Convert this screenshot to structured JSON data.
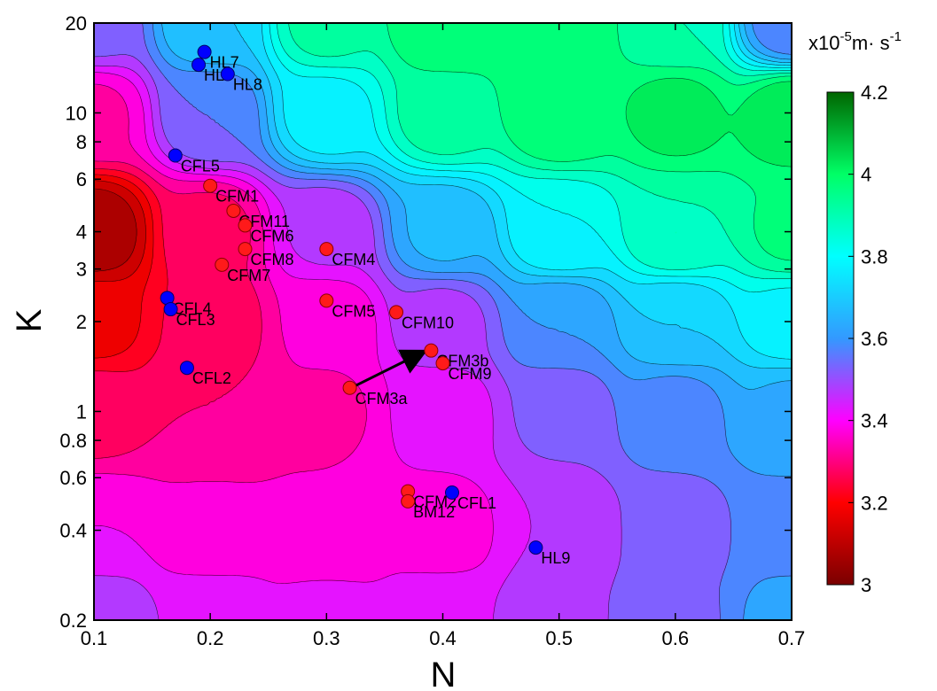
{
  "chart_data": {
    "type": "contour",
    "xlabel": "N",
    "ylabel": "K",
    "xlim": [
      0.1,
      0.7
    ],
    "ylim": [
      0.2,
      20
    ],
    "yscale": "log",
    "x_ticks": [
      {
        "v": 0.1,
        "label": "0.1"
      },
      {
        "v": 0.2,
        "label": "0.2"
      },
      {
        "v": 0.3,
        "label": "0.3"
      },
      {
        "v": 0.4,
        "label": "0.4"
      },
      {
        "v": 0.5,
        "label": "0.5"
      },
      {
        "v": 0.6,
        "label": "0.6"
      },
      {
        "v": 0.7,
        "label": "0.7"
      }
    ],
    "y_ticks": [
      {
        "v": 0.2,
        "label": "0.2"
      },
      {
        "v": 0.4,
        "label": "0.4"
      },
      {
        "v": 0.6,
        "label": "0.6"
      },
      {
        "v": 0.8,
        "label": "0.8"
      },
      {
        "v": 1,
        "label": "1"
      },
      {
        "v": 2,
        "label": "2"
      },
      {
        "v": 3,
        "label": "3"
      },
      {
        "v": 4,
        "label": "4"
      },
      {
        "v": 6,
        "label": "6"
      },
      {
        "v": 8,
        "label": "8"
      },
      {
        "v": 10,
        "label": "10"
      },
      {
        "v": 20,
        "label": "20"
      }
    ],
    "colorbar": {
      "label_base": "x10",
      "label_exp": "-5",
      "label_unit": "m· s",
      "label_unit_exp": "-1",
      "range": [
        3,
        4.2
      ],
      "ticks": [
        {
          "v": 3,
          "label": "3"
        },
        {
          "v": 3.2,
          "label": "3.2"
        },
        {
          "v": 3.4,
          "label": "3.4"
        },
        {
          "v": 3.6,
          "label": "3.6"
        },
        {
          "v": 3.8,
          "label": "3.8"
        },
        {
          "v": 4,
          "label": "4"
        },
        {
          "v": 4.2,
          "label": "4.2"
        }
      ],
      "colors": [
        "#7a0000",
        "#ff0000",
        "#ff00ff",
        "#3399ff",
        "#00ffff",
        "#00ff66",
        "#006600"
      ]
    },
    "points": [
      {
        "label": "HL7",
        "N": 0.195,
        "K": 16.0,
        "color": "blue",
        "dx": 6,
        "dy": 18
      },
      {
        "label": "HL6",
        "N": 0.19,
        "K": 14.5,
        "color": "blue",
        "dx": 6,
        "dy": 18
      },
      {
        "label": "HL8",
        "N": 0.215,
        "K": 13.5,
        "color": "blue",
        "dx": 6,
        "dy": 18
      },
      {
        "label": "CFL5",
        "N": 0.17,
        "K": 7.2,
        "color": "blue",
        "dx": 6,
        "dy": 18
      },
      {
        "label": "CFM1",
        "N": 0.2,
        "K": 5.7,
        "color": "red",
        "dx": 6,
        "dy": 18
      },
      {
        "label": "CFM11",
        "N": 0.22,
        "K": 4.7,
        "color": "red",
        "dx": 6,
        "dy": 18
      },
      {
        "label": "CFM6",
        "N": 0.23,
        "K": 4.2,
        "color": "red",
        "dx": 6,
        "dy": 18
      },
      {
        "label": "CFM8",
        "N": 0.23,
        "K": 3.5,
        "color": "red",
        "dx": 6,
        "dy": 18
      },
      {
        "label": "CFM7",
        "N": 0.21,
        "K": 3.1,
        "color": "red",
        "dx": 6,
        "dy": 18
      },
      {
        "label": "CFM4",
        "N": 0.3,
        "K": 3.5,
        "color": "red",
        "dx": 6,
        "dy": 18
      },
      {
        "label": "CFL4",
        "N": 0.163,
        "K": 2.4,
        "color": "blue",
        "dx": 6,
        "dy": 18
      },
      {
        "label": "CFL3",
        "N": 0.166,
        "K": 2.2,
        "color": "blue",
        "dx": 6,
        "dy": 18
      },
      {
        "label": "CFM5",
        "N": 0.3,
        "K": 2.35,
        "color": "red",
        "dx": 6,
        "dy": 18
      },
      {
        "label": "CFM10",
        "N": 0.36,
        "K": 2.15,
        "color": "red",
        "dx": 6,
        "dy": 18
      },
      {
        "label": "CFM3b",
        "N": 0.39,
        "K": 1.6,
        "color": "red",
        "dx": 6,
        "dy": 18
      },
      {
        "label": "CFM9",
        "N": 0.4,
        "K": 1.45,
        "color": "red",
        "dx": 6,
        "dy": 18
      },
      {
        "label": "CFL2",
        "N": 0.18,
        "K": 1.4,
        "color": "blue",
        "dx": 6,
        "dy": 18
      },
      {
        "label": "CFM3a",
        "N": 0.32,
        "K": 1.2,
        "color": "red",
        "dx": 6,
        "dy": 18
      },
      {
        "label": "CFM2",
        "N": 0.37,
        "K": 0.54,
        "color": "red",
        "dx": 6,
        "dy": 18
      },
      {
        "label": "BM12",
        "N": 0.37,
        "K": 0.5,
        "color": "red",
        "dx": 6,
        "dy": 18
      },
      {
        "label": "CFL1",
        "N": 0.408,
        "K": 0.535,
        "color": "blue",
        "dx": 6,
        "dy": 18
      },
      {
        "label": "HL9",
        "N": 0.48,
        "K": 0.35,
        "color": "blue",
        "dx": 6,
        "dy": 18
      }
    ],
    "arrow": {
      "from": {
        "N": 0.325,
        "K": 1.22
      },
      "to": {
        "N": 0.383,
        "K": 1.58
      }
    },
    "field_anchors": [
      {
        "N": 0.1,
        "K": 0.2,
        "v": 3.5
      },
      {
        "N": 0.2,
        "K": 0.2,
        "v": 3.44
      },
      {
        "N": 0.3,
        "K": 0.2,
        "v": 3.42
      },
      {
        "N": 0.4,
        "K": 0.2,
        "v": 3.44
      },
      {
        "N": 0.5,
        "K": 0.2,
        "v": 3.49
      },
      {
        "N": 0.6,
        "K": 0.2,
        "v": 3.54
      },
      {
        "N": 0.7,
        "K": 0.2,
        "v": 3.62
      },
      {
        "N": 0.1,
        "K": 0.4,
        "v": 3.4
      },
      {
        "N": 0.2,
        "K": 0.4,
        "v": 3.36
      },
      {
        "N": 0.3,
        "K": 0.4,
        "v": 3.35
      },
      {
        "N": 0.4,
        "K": 0.4,
        "v": 3.37
      },
      {
        "N": 0.5,
        "K": 0.4,
        "v": 3.45
      },
      {
        "N": 0.6,
        "K": 0.4,
        "v": 3.52
      },
      {
        "N": 0.7,
        "K": 0.4,
        "v": 3.58
      },
      {
        "N": 0.1,
        "K": 1.0,
        "v": 3.28
      },
      {
        "N": 0.2,
        "K": 1.0,
        "v": 3.3
      },
      {
        "N": 0.3,
        "K": 1.0,
        "v": 3.34
      },
      {
        "N": 0.4,
        "K": 1.0,
        "v": 3.42
      },
      {
        "N": 0.5,
        "K": 1.0,
        "v": 3.51
      },
      {
        "N": 0.6,
        "K": 1.0,
        "v": 3.58
      },
      {
        "N": 0.7,
        "K": 1.0,
        "v": 3.64
      },
      {
        "N": 0.1,
        "K": 2.0,
        "v": 3.18
      },
      {
        "N": 0.2,
        "K": 2.0,
        "v": 3.26
      },
      {
        "N": 0.3,
        "K": 2.0,
        "v": 3.36
      },
      {
        "N": 0.4,
        "K": 2.0,
        "v": 3.48
      },
      {
        "N": 0.5,
        "K": 2.0,
        "v": 3.6
      },
      {
        "N": 0.6,
        "K": 2.0,
        "v": 3.7
      },
      {
        "N": 0.7,
        "K": 2.0,
        "v": 3.78
      },
      {
        "N": 0.1,
        "K": 4.0,
        "v": 3.06
      },
      {
        "N": 0.2,
        "K": 4.0,
        "v": 3.28
      },
      {
        "N": 0.3,
        "K": 4.0,
        "v": 3.46
      },
      {
        "N": 0.4,
        "K": 4.0,
        "v": 3.66
      },
      {
        "N": 0.5,
        "K": 4.0,
        "v": 3.8
      },
      {
        "N": 0.6,
        "K": 4.0,
        "v": 3.9
      },
      {
        "N": 0.7,
        "K": 4.0,
        "v": 3.96
      },
      {
        "N": 0.1,
        "K": 10.0,
        "v": 3.34
      },
      {
        "N": 0.2,
        "K": 10.0,
        "v": 3.55
      },
      {
        "N": 0.3,
        "K": 10.0,
        "v": 3.78
      },
      {
        "N": 0.4,
        "K": 10.0,
        "v": 3.93
      },
      {
        "N": 0.5,
        "K": 10.0,
        "v": 4.0
      },
      {
        "N": 0.6,
        "K": 10.0,
        "v": 4.02
      },
      {
        "N": 0.7,
        "K": 10.0,
        "v": 4.04
      },
      {
        "N": 0.1,
        "K": 20.0,
        "v": 3.52
      },
      {
        "N": 0.2,
        "K": 20.0,
        "v": 3.7
      },
      {
        "N": 0.3,
        "K": 20.0,
        "v": 3.92
      },
      {
        "N": 0.4,
        "K": 20.0,
        "v": 4.0
      },
      {
        "N": 0.5,
        "K": 20.0,
        "v": 4.0
      },
      {
        "N": 0.6,
        "K": 20.0,
        "v": 3.9
      },
      {
        "N": 0.7,
        "K": 20.0,
        "v": 3.56
      }
    ],
    "grid": false
  }
}
